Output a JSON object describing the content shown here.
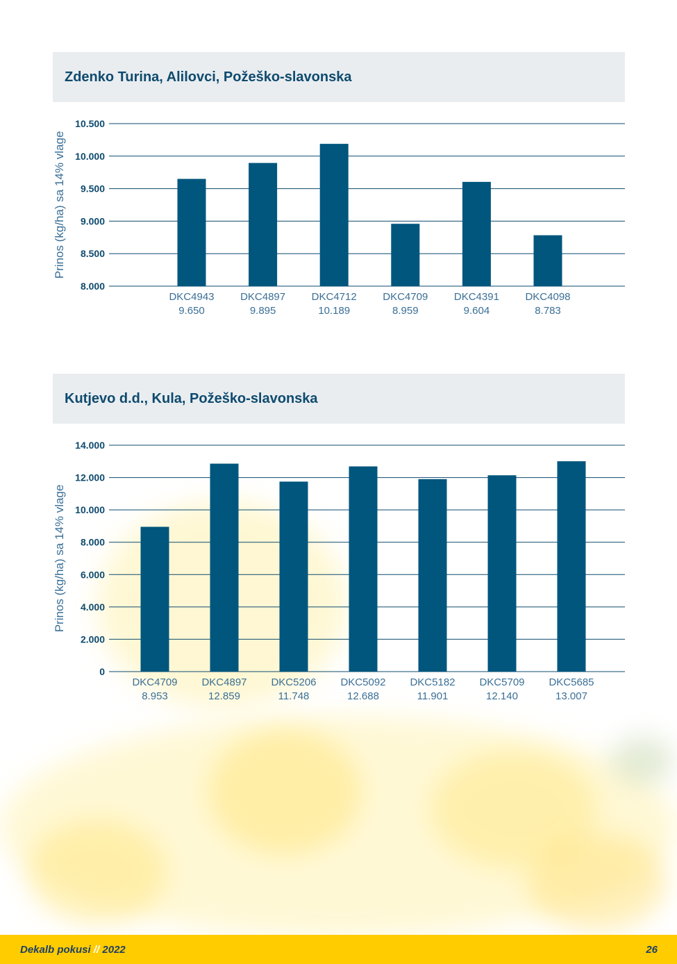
{
  "colors": {
    "bar": "#00567d",
    "grid": "#0e4a6e",
    "axis_text": "#0e4a6e",
    "label_text": "#3a6f96",
    "header_bg": "#e9edf0",
    "footer_bg": "#ffcc00"
  },
  "chart_data": [
    {
      "type": "bar",
      "title": "Zdenko Turina, Alilovci, Požeško-slavonska",
      "ylabel": "Prinos (kg/ha) sa 14% vlage",
      "xlabel": "",
      "ylim": [
        8000,
        10500
      ],
      "yticks": [
        8000,
        8500,
        9000,
        9500,
        10000,
        10500
      ],
      "ytick_labels": [
        "8.000",
        "8.500",
        "9.000",
        "9.500",
        "10.000",
        "10.500"
      ],
      "categories": [
        "DKC4943",
        "DKC4897",
        "DKC4712",
        "DKC4709",
        "DKC4391",
        "DKC4098"
      ],
      "value_labels": [
        "9.650",
        "9.895",
        "10.189",
        "8.959",
        "9.604",
        "8.783"
      ],
      "values": [
        9650,
        9895,
        10189,
        8959,
        9604,
        8783
      ],
      "grid": true
    },
    {
      "type": "bar",
      "title": "Kutjevo d.d., Kula, Požeško-slavonska",
      "ylabel": "Prinos (kg/ha) sa 14% vlage",
      "xlabel": "",
      "ylim": [
        0,
        14000
      ],
      "yticks": [
        0,
        2000,
        4000,
        6000,
        8000,
        10000,
        12000,
        14000
      ],
      "ytick_labels": [
        "0",
        "2.000",
        "4.000",
        "6.000",
        "8.000",
        "10.000",
        "12.000",
        "14.000"
      ],
      "categories": [
        "DKC4709",
        "DKC4897",
        "DKC5206",
        "DKC5092",
        "DKC5182",
        "DKC5709",
        "DKC5685"
      ],
      "value_labels": [
        "8.953",
        "12.859",
        "11.748",
        "12.688",
        "11.901",
        "12.140",
        "13.007"
      ],
      "values": [
        8953,
        12859,
        11748,
        12688,
        11901,
        12140,
        13007
      ],
      "grid": true
    }
  ],
  "footer": {
    "publication": "Dekalb pokusi",
    "separator": "//",
    "year": "2022",
    "page_number": "26"
  }
}
